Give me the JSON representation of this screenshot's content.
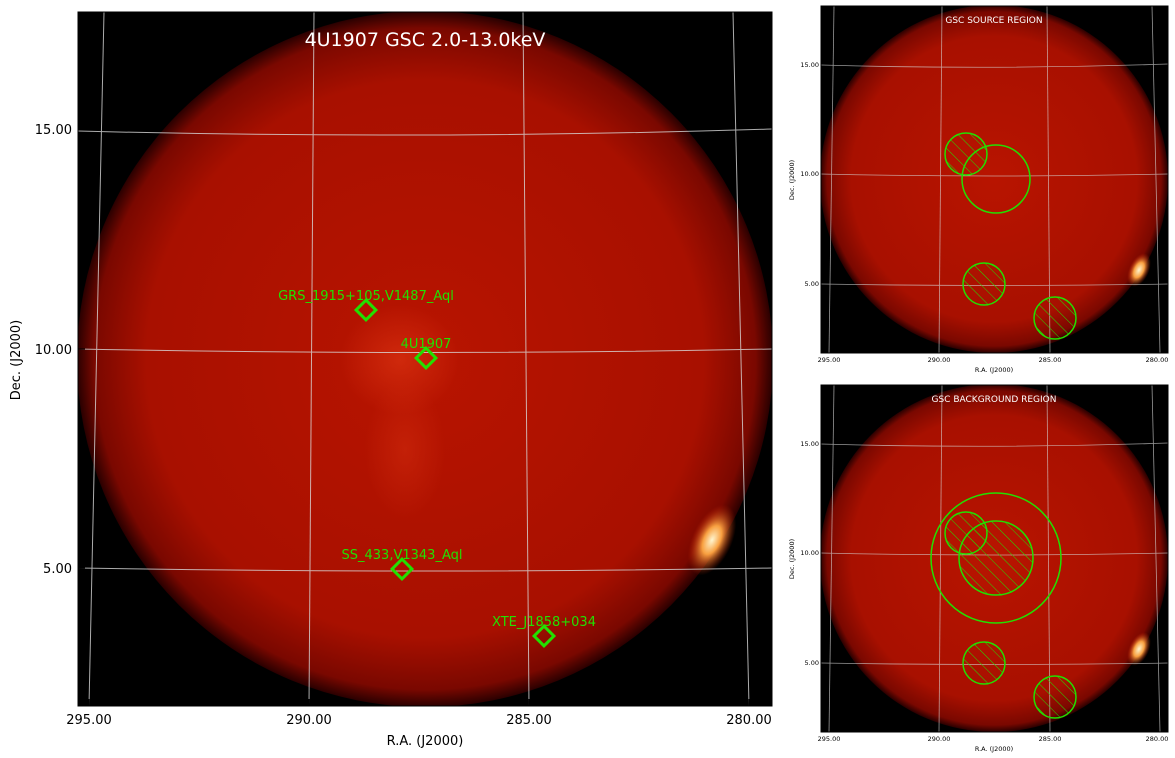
{
  "main": {
    "title": "4U1907 GSC 2.0-13.0keV",
    "xlabel": "R.A. (J2000)",
    "ylabel": "Dec. (J2000)",
    "xticks": [
      "295.00",
      "290.00",
      "285.00",
      "280.00"
    ],
    "yticks": [
      "15.00",
      "10.00",
      "5.00"
    ],
    "sources": [
      {
        "name": "GRS_1915+105,V1487_Aql",
        "ra": 288.7,
        "dec": 10.9
      },
      {
        "name": "4U1907",
        "ra": 287.3,
        "dec": 9.8
      },
      {
        "name": "SS_433,V1343_Aql",
        "ra": 287.9,
        "dec": 5.0
      },
      {
        "name": "XTE_J1858+034",
        "ra": 284.6,
        "dec": 3.45
      }
    ]
  },
  "source_panel": {
    "title": "GSC SOURCE REGION",
    "xlabel": "R.A. (J2000)",
    "ylabel": "Dec. (J2000)",
    "xticks": [
      "295.00",
      "290.00",
      "285.00",
      "280.00"
    ],
    "yticks": [
      "15.00",
      "10.00",
      "5.00"
    ]
  },
  "background_panel": {
    "title": "GSC BACKGROUND REGION",
    "xlabel": "R.A. (J2000)",
    "ylabel": "Dec. (J2000)",
    "xticks": [
      "295.00",
      "290.00",
      "285.00",
      "280.00"
    ],
    "yticks": [
      "15.00",
      "10.00",
      "5.00"
    ]
  },
  "colors": {
    "source_marker": "#22e000",
    "grid": "#d8d8d8",
    "disk": "#b01000",
    "background": "#000000"
  }
}
